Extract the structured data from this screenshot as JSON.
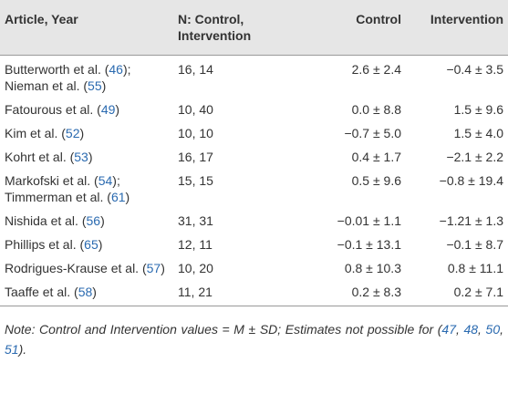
{
  "table": {
    "header": [
      "Article, Year",
      "N: Control, Intervention",
      "Control",
      "Intervention"
    ],
    "rows": [
      [
        [
          "Butterworth et al. (",
          "46",
          "); Nieman et al. (",
          "55",
          ")"
        ],
        "16, 14",
        "2.6 ± 2.4",
        "−0.4 ± 3.5"
      ],
      [
        [
          "Fatourous et al. (",
          "49",
          ")"
        ],
        "10, 40",
        "0.0 ± 8.8",
        "1.5 ± 9.6"
      ],
      [
        [
          "Kim et al. (",
          "52",
          ")"
        ],
        "10, 10",
        "−0.7 ± 5.0",
        "1.5 ± 4.0"
      ],
      [
        [
          "Kohrt et al. (",
          "53",
          ")"
        ],
        "16, 17",
        "0.4 ± 1.7",
        "−2.1 ± 2.2"
      ],
      [
        [
          "Markofski et al. (",
          "54",
          "); Timmerman et al. (",
          "61",
          ")"
        ],
        "15, 15",
        "0.5 ± 9.6",
        "−0.8 ± 19.4"
      ],
      [
        [
          "Nishida et al. (",
          "56",
          ")"
        ],
        "31, 31",
        "−0.01 ± 1.1",
        "−1.21 ± 1.3"
      ],
      [
        [
          "Phillips et al. (",
          "65",
          ")"
        ],
        "12, 11",
        "−0.1 ± 13.1",
        "−0.1 ± 8.7"
      ],
      [
        [
          "Rodrigues-Krause et al. (",
          "57",
          ")"
        ],
        "10, 20",
        "0.8 ± 10.3",
        "0.8 ± 11.1"
      ],
      [
        [
          "Taaffe et al. (",
          "58",
          ")"
        ],
        "11, 21",
        "0.2 ± 8.3",
        "0.2 ± 7.1"
      ]
    ],
    "note": [
      "Note: Control and Intervention values = M ± SD; Estimates not possible for (",
      "47",
      ", ",
      "48",
      ", ",
      "50",
      ", ",
      "51",
      ")."
    ]
  }
}
